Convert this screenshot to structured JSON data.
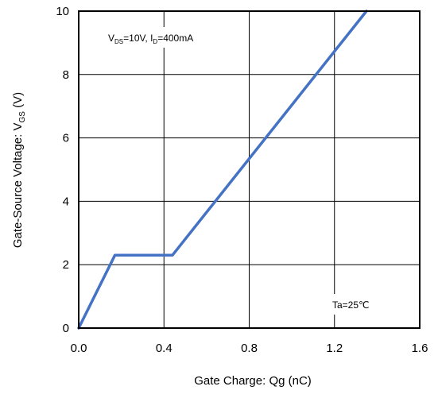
{
  "chart_data": {
    "type": "line",
    "xlabel": "Gate Charge: Qg (nC)",
    "ylabel": "Gate-Source Voltage: V",
    "ylabel_sub": "GS",
    "ylabel_suffix": " (V)",
    "xlim": [
      0,
      1.6
    ],
    "ylim": [
      0,
      10
    ],
    "x_ticks": [
      "0.0",
      "0.4",
      "0.8",
      "1.2",
      "1.6"
    ],
    "y_ticks": [
      "0",
      "2",
      "4",
      "6",
      "8",
      "10"
    ],
    "grid": true,
    "series": [
      {
        "x": [
          0.0,
          0.17,
          0.44,
          1.35
        ],
        "y": [
          0.0,
          2.3,
          2.3,
          10.0
        ],
        "color": "#4472c4"
      }
    ],
    "annotations": {
      "condition": {
        "v": "V",
        "ds_sub": "DS",
        "mid": "=10V, I",
        "d_sub": "D",
        "tail": "=400mA"
      },
      "temperature": "Ta=25℃"
    }
  }
}
